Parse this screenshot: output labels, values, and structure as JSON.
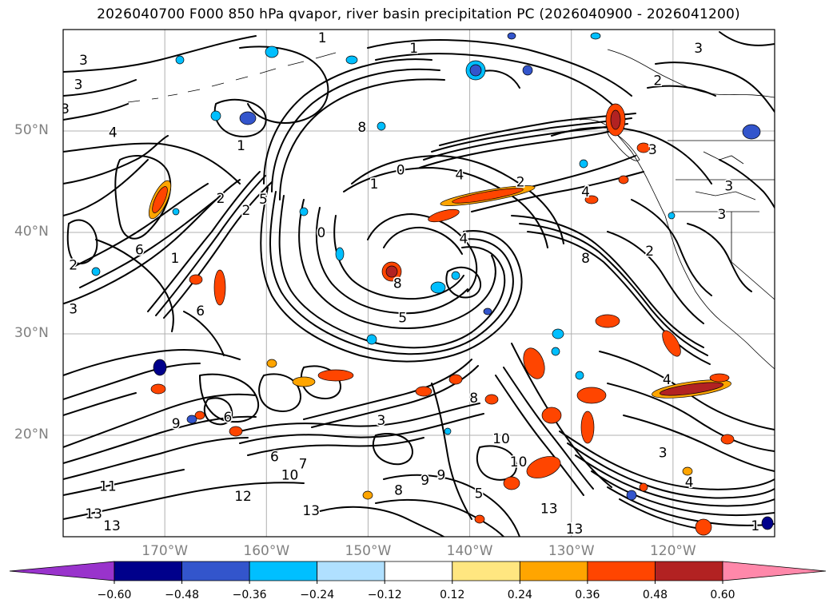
{
  "title": "2026040700 F000 850 hPa qvapor, river basin precipitation PC (2026040900 - 2026041200)",
  "axes": {
    "lat_labels": [
      {
        "lat": 50,
        "label": "50°N"
      },
      {
        "lat": 40,
        "label": "40°N"
      },
      {
        "lat": 30,
        "label": "30°N"
      },
      {
        "lat": 20,
        "label": "20°N"
      }
    ],
    "lon_labels": [
      {
        "lon": -170,
        "label": "170°W"
      },
      {
        "lon": -160,
        "label": "160°W"
      },
      {
        "lon": -150,
        "label": "150°W"
      },
      {
        "lon": -140,
        "label": "140°W"
      },
      {
        "lon": -130,
        "label": "130°W"
      },
      {
        "lon": -120,
        "label": "120°W"
      }
    ],
    "lon_range": [
      -180,
      -110
    ],
    "lat_range": [
      10,
      60
    ],
    "grid": true
  },
  "colorbar": {
    "levels": [
      -0.6,
      -0.48,
      -0.36,
      -0.24,
      -0.12,
      0.12,
      0.24,
      0.36,
      0.48,
      0.6
    ],
    "tick_labels": [
      "−0.60",
      "−0.48",
      "−0.36",
      "−0.24",
      "−0.12",
      "0.12",
      "0.24",
      "0.36",
      "0.48",
      "0.60"
    ],
    "colors": [
      "#9933cc",
      "#00008b",
      "#3355cc",
      "#00bfff",
      "#b0e0ff",
      "#ffffff",
      "#ffe680",
      "#ffa500",
      "#ff4500",
      "#b22222",
      "#ff88aa"
    ],
    "extend": "both"
  },
  "contour_labels": [
    {
      "text": "1",
      "lon": -154.5,
      "lat": 59.2
    },
    {
      "text": "1",
      "lon": -145.5,
      "lat": 58.2
    },
    {
      "text": "3",
      "lon": -178,
      "lat": 57.0
    },
    {
      "text": "3",
      "lon": -178.5,
      "lat": 54.6
    },
    {
      "text": "3",
      "lon": -117.5,
      "lat": 58.2
    },
    {
      "text": "2",
      "lon": -121.5,
      "lat": 55.0
    },
    {
      "text": "3",
      "lon": -179.8,
      "lat": 52.2
    },
    {
      "text": "4",
      "lon": -175.1,
      "lat": 49.9
    },
    {
      "text": "8",
      "lon": -150.6,
      "lat": 50.4
    },
    {
      "text": "0",
      "lon": -146.8,
      "lat": 46.2
    },
    {
      "text": "1",
      "lon": -149.4,
      "lat": 44.8
    },
    {
      "text": "1",
      "lon": -162.5,
      "lat": 48.6
    },
    {
      "text": "2",
      "lon": -164.5,
      "lat": 43.4
    },
    {
      "text": "2",
      "lon": -162.0,
      "lat": 42.2
    },
    {
      "text": "5",
      "lon": -160.3,
      "lat": 43.3
    },
    {
      "text": "4",
      "lon": -141.0,
      "lat": 45.7
    },
    {
      "text": "2",
      "lon": -135.0,
      "lat": 45.0
    },
    {
      "text": "4",
      "lon": -128.6,
      "lat": 44.0
    },
    {
      "text": "3",
      "lon": -122.0,
      "lat": 48.2
    },
    {
      "text": "3",
      "lon": -115.2,
      "lat": 41.8
    },
    {
      "text": "6",
      "lon": -172.5,
      "lat": 38.3
    },
    {
      "text": "1",
      "lon": -169.0,
      "lat": 37.5
    },
    {
      "text": "2",
      "lon": -179.0,
      "lat": 36.8
    },
    {
      "text": "3",
      "lon": -179.0,
      "lat": 32.5
    },
    {
      "text": "0",
      "lon": -154.6,
      "lat": 40.0
    },
    {
      "text": "4",
      "lon": -140.6,
      "lat": 39.4
    },
    {
      "text": "8",
      "lon": -128.6,
      "lat": 37.5
    },
    {
      "text": "2",
      "lon": -122.3,
      "lat": 38.2
    },
    {
      "text": "6",
      "lon": -166.5,
      "lat": 32.3
    },
    {
      "text": "5",
      "lon": -146.6,
      "lat": 31.6
    },
    {
      "text": "9",
      "lon": -168.9,
      "lat": 21.2
    },
    {
      "text": "8",
      "lon": -147.1,
      "lat": 35.0
    },
    {
      "text": "6",
      "lon": -163.8,
      "lat": 21.8
    },
    {
      "text": "6",
      "lon": -159.2,
      "lat": 17.9
    },
    {
      "text": "7",
      "lon": -156.4,
      "lat": 17.2
    },
    {
      "text": "10",
      "lon": -157.7,
      "lat": 16.1
    },
    {
      "text": "3",
      "lon": -148.7,
      "lat": 21.5
    },
    {
      "text": "12",
      "lon": -162.3,
      "lat": 14.0
    },
    {
      "text": "11",
      "lon": -175.6,
      "lat": 15.0
    },
    {
      "text": "13",
      "lon": -177.0,
      "lat": 12.3
    },
    {
      "text": "13",
      "lon": -175.2,
      "lat": 11.1
    },
    {
      "text": "13",
      "lon": -155.6,
      "lat": 12.6
    },
    {
      "text": "9",
      "lon": -142.8,
      "lat": 16.1
    },
    {
      "text": "8",
      "lon": -147.0,
      "lat": 14.6
    },
    {
      "text": "9",
      "lon": -144.4,
      "lat": 15.6
    },
    {
      "text": "5",
      "lon": -139.1,
      "lat": 14.3
    },
    {
      "text": "8",
      "lon": -139.6,
      "lat": 23.7
    },
    {
      "text": "10",
      "lon": -136.9,
      "lat": 19.7
    },
    {
      "text": "10",
      "lon": -135.2,
      "lat": 17.4
    },
    {
      "text": "13",
      "lon": -132.2,
      "lat": 12.8
    },
    {
      "text": "13",
      "lon": -129.7,
      "lat": 10.8
    },
    {
      "text": "4",
      "lon": -118.4,
      "lat": 15.4
    },
    {
      "text": "3",
      "lon": -121.0,
      "lat": 18.3
    },
    {
      "text": "4",
      "lon": -120.6,
      "lat": 25.5
    },
    {
      "text": "1",
      "lon": -111.9,
      "lat": 11.1
    },
    {
      "text": "3",
      "lon": -114.5,
      "lat": 44.6
    }
  ]
}
